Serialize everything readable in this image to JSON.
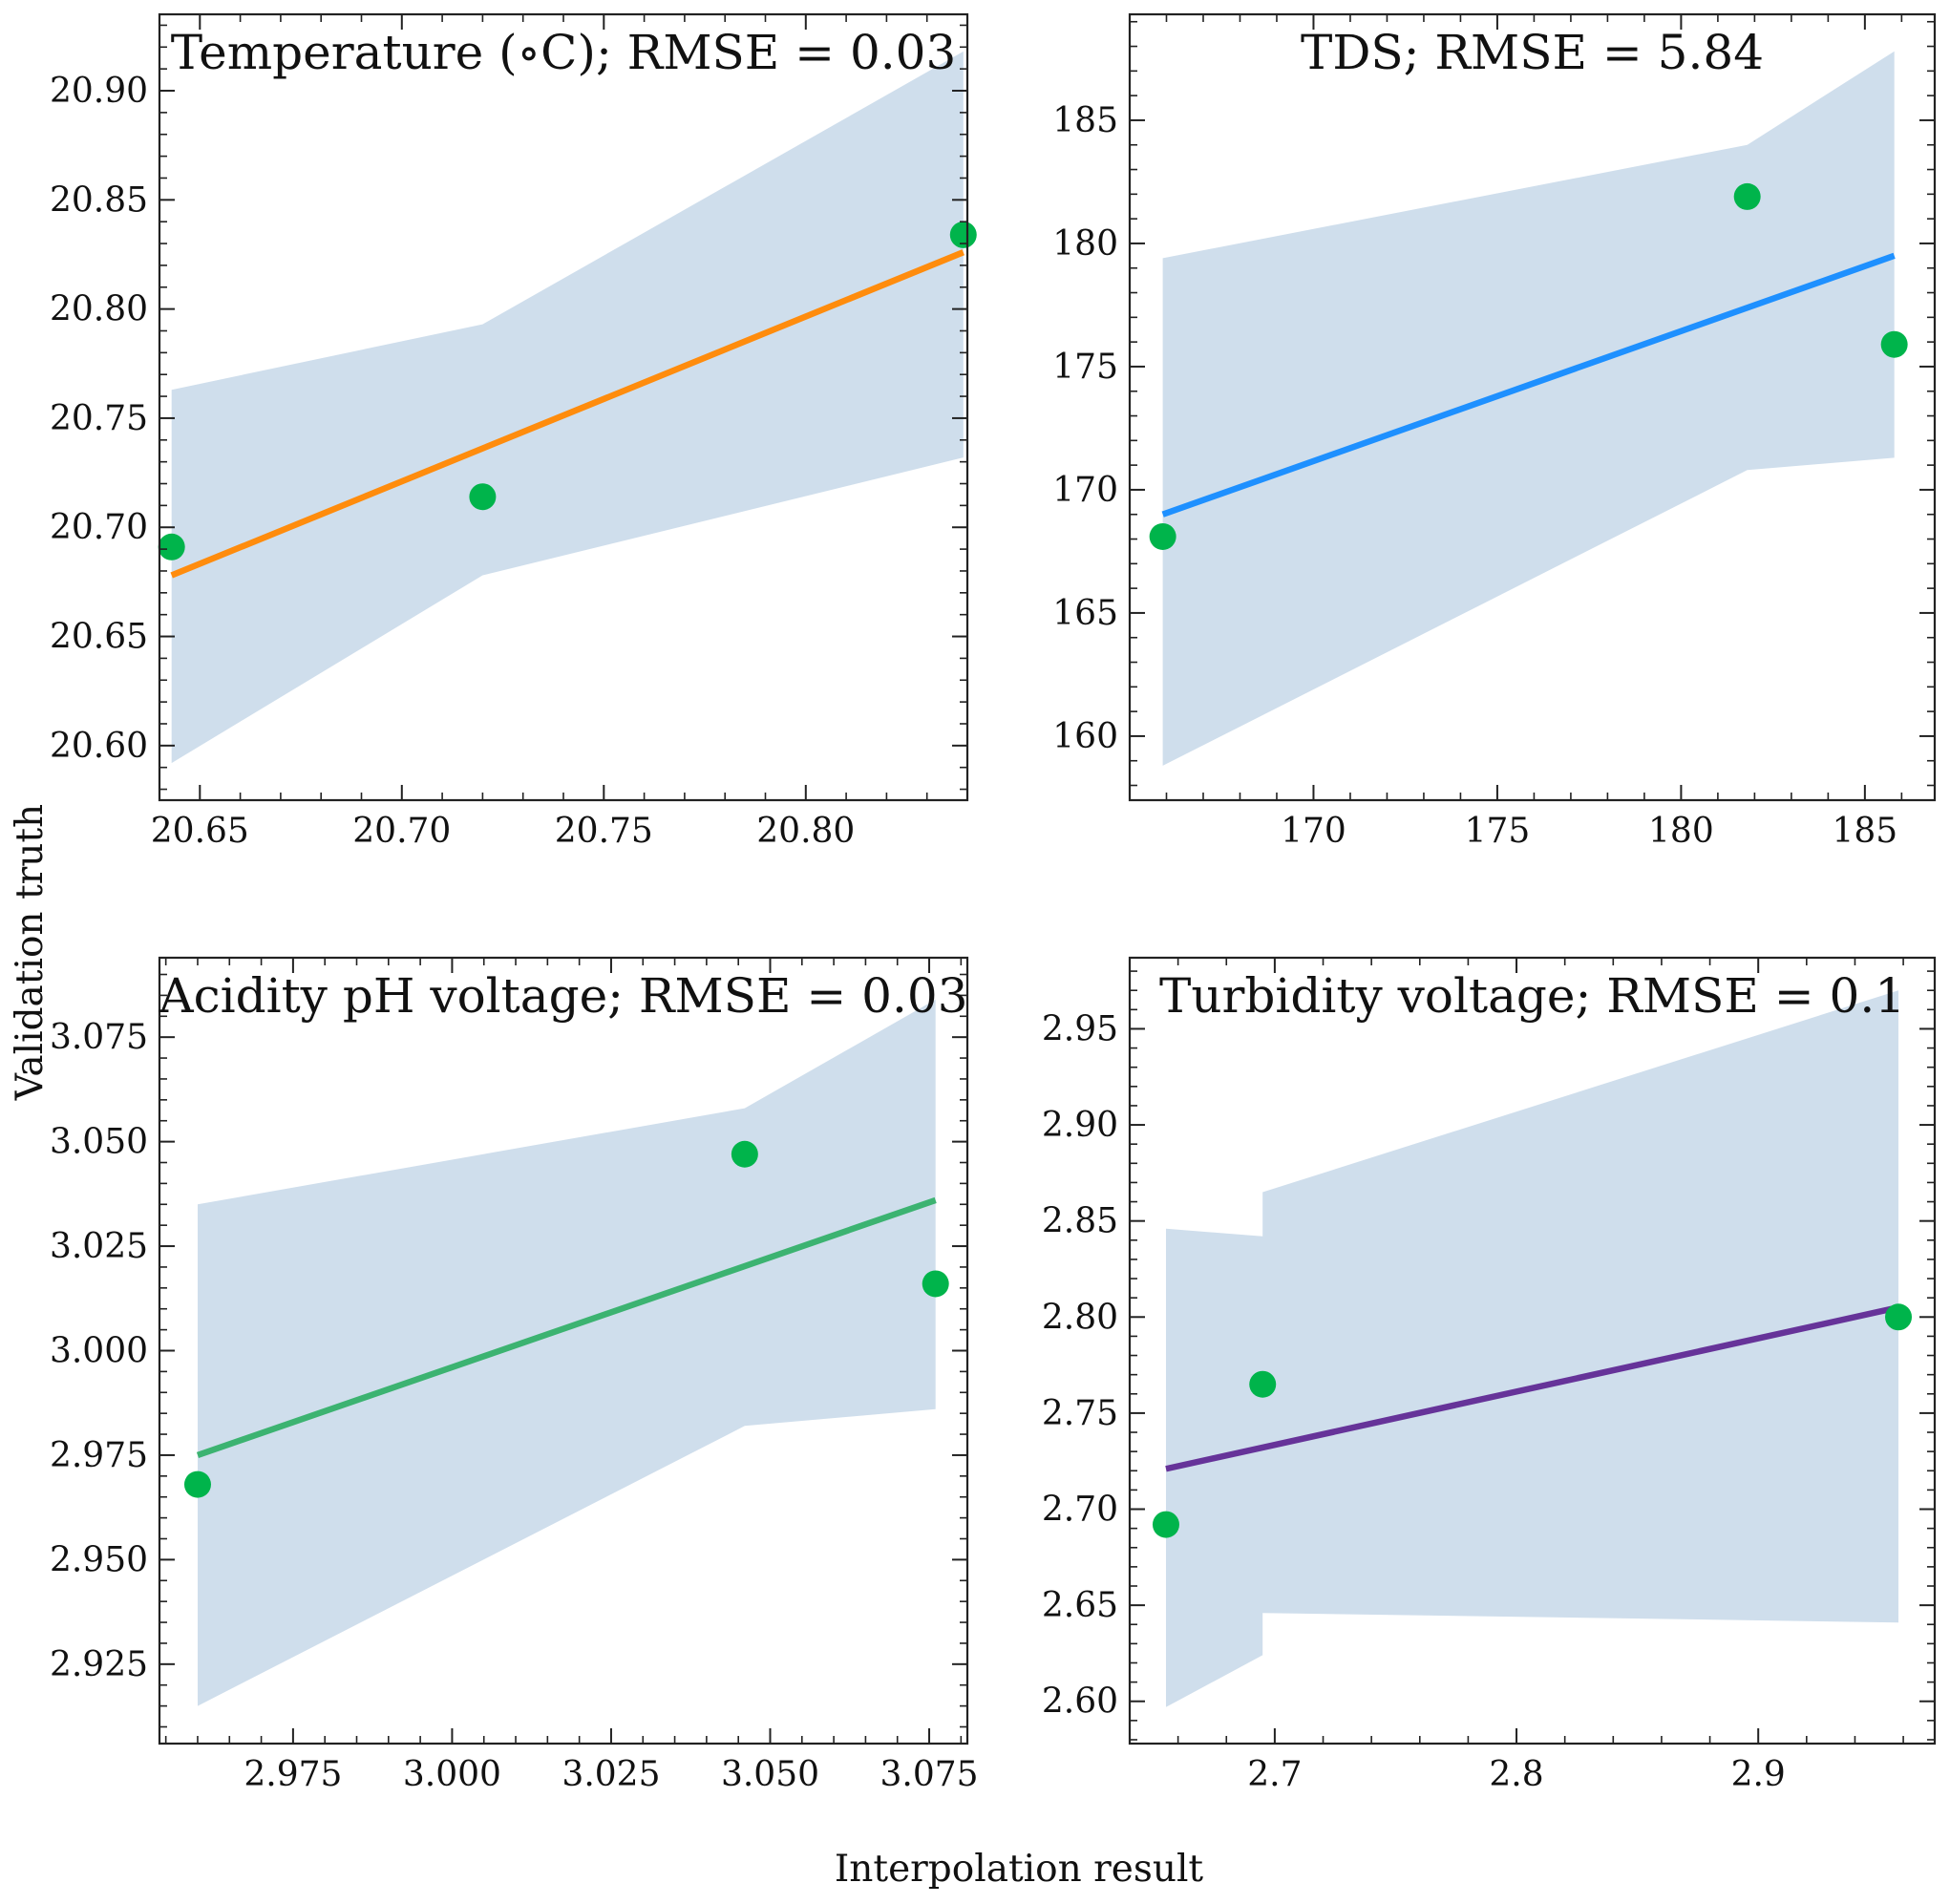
{
  "figure": {
    "xlabel": "Interpolation result",
    "ylabel": "Validation truth"
  },
  "colors": {
    "points": "#00b44b",
    "band": "#cfdeec",
    "axes": "#222222"
  },
  "chart_data": [
    {
      "type": "scatter",
      "title": "Temperature (∘C); RMSE = 0.03",
      "xlabel": "",
      "ylabel": "",
      "xlim": [
        20.64,
        20.84
      ],
      "ylim": [
        20.575,
        20.935
      ],
      "xticks": [
        20.65,
        20.7,
        20.75,
        20.8
      ],
      "xtick_labels": [
        "20.65",
        "20.70",
        "20.75",
        "20.80"
      ],
      "yticks": [
        20.6,
        20.65,
        20.7,
        20.75,
        20.8,
        20.85,
        20.9
      ],
      "ytick_labels": [
        "20.60",
        "20.65",
        "20.70",
        "20.75",
        "20.80",
        "20.85",
        "20.90"
      ],
      "points": [
        {
          "x": 20.643,
          "y": 20.691
        },
        {
          "x": 20.72,
          "y": 20.714
        },
        {
          "x": 20.839,
          "y": 20.834
        }
      ],
      "fit_line": {
        "color": "#ff8c0d",
        "x": [
          20.643,
          20.839
        ],
        "y": [
          20.678,
          20.826
        ]
      },
      "band": {
        "x": [
          20.643,
          20.72,
          20.839
        ],
        "upper": [
          20.763,
          20.793,
          20.918
        ],
        "lower": [
          20.592,
          20.678,
          20.732
        ]
      },
      "legend": "none",
      "grid": false
    },
    {
      "type": "scatter",
      "title": "TDS; RMSE = 5.84",
      "xlabel": "",
      "ylabel": "",
      "xlim": [
        165.0,
        186.9
      ],
      "ylim": [
        157.4,
        189.3
      ],
      "xticks": [
        170,
        175,
        180,
        185
      ],
      "xtick_labels": [
        "170",
        "175",
        "180",
        "185"
      ],
      "yticks": [
        160,
        165,
        170,
        175,
        180,
        185
      ],
      "ytick_labels": [
        "160",
        "165",
        "170",
        "175",
        "180",
        "185"
      ],
      "points": [
        {
          "x": 165.9,
          "y": 168.1
        },
        {
          "x": 181.8,
          "y": 181.9
        },
        {
          "x": 185.8,
          "y": 175.9
        }
      ],
      "fit_line": {
        "color": "#1e90ff",
        "x": [
          165.9,
          185.8
        ],
        "y": [
          169.0,
          179.5
        ]
      },
      "band": {
        "x": [
          165.9,
          181.8,
          185.8
        ],
        "upper": [
          179.4,
          184.0,
          187.8
        ],
        "lower": [
          158.8,
          170.8,
          171.3
        ]
      },
      "legend": "none",
      "grid": false
    },
    {
      "type": "scatter",
      "title": "Acidity pH voltage; RMSE = 0.03",
      "xlabel": "",
      "ylabel": "",
      "xlim": [
        2.954,
        3.081
      ],
      "ylim": [
        2.906,
        3.094
      ],
      "xticks": [
        2.975,
        3.0,
        3.025,
        3.05,
        3.075
      ],
      "xtick_labels": [
        "2.975",
        "3.000",
        "3.025",
        "3.050",
        "3.075"
      ],
      "yticks": [
        2.925,
        2.95,
        2.975,
        3.0,
        3.025,
        3.05,
        3.075
      ],
      "ytick_labels": [
        "2.925",
        "2.950",
        "2.975",
        "3.000",
        "3.025",
        "3.050",
        "3.075"
      ],
      "points": [
        {
          "x": 2.96,
          "y": 2.968
        },
        {
          "x": 3.046,
          "y": 3.047
        },
        {
          "x": 3.076,
          "y": 3.016
        }
      ],
      "fit_line": {
        "color": "#3cb371",
        "x": [
          2.96,
          3.076
        ],
        "y": [
          2.975,
          3.036
        ]
      },
      "band": {
        "x": [
          2.96,
          3.046,
          3.076
        ],
        "upper": [
          3.035,
          3.058,
          3.084
        ],
        "lower": [
          2.915,
          2.982,
          2.986
        ]
      },
      "legend": "none",
      "grid": false
    },
    {
      "type": "scatter",
      "title": "Turbidity voltage; RMSE = 0.1",
      "xlabel": "",
      "ylabel": "",
      "xlim": [
        2.64,
        2.973
      ],
      "ylim": [
        2.578,
        2.987
      ],
      "xticks": [
        2.7,
        2.8,
        2.9
      ],
      "xtick_labels": [
        "2.7",
        "2.8",
        "2.9"
      ],
      "yticks": [
        2.6,
        2.65,
        2.7,
        2.75,
        2.8,
        2.85,
        2.9,
        2.95
      ],
      "ytick_labels": [
        "2.60",
        "2.65",
        "2.70",
        "2.75",
        "2.80",
        "2.85",
        "2.90",
        "2.95"
      ],
      "points": [
        {
          "x": 2.655,
          "y": 2.692
        },
        {
          "x": 2.695,
          "y": 2.765
        },
        {
          "x": 2.958,
          "y": 2.8
        }
      ],
      "fit_line": {
        "color": "#663399",
        "x": [
          2.655,
          2.958
        ],
        "y": [
          2.721,
          2.805
        ]
      },
      "band": {
        "x": [
          2.655,
          2.695,
          2.695,
          2.958
        ],
        "upper": [
          2.846,
          2.842,
          2.865,
          2.97
        ],
        "lower": [
          2.597,
          2.624,
          2.646,
          2.641
        ]
      },
      "legend": "none",
      "grid": false
    }
  ]
}
